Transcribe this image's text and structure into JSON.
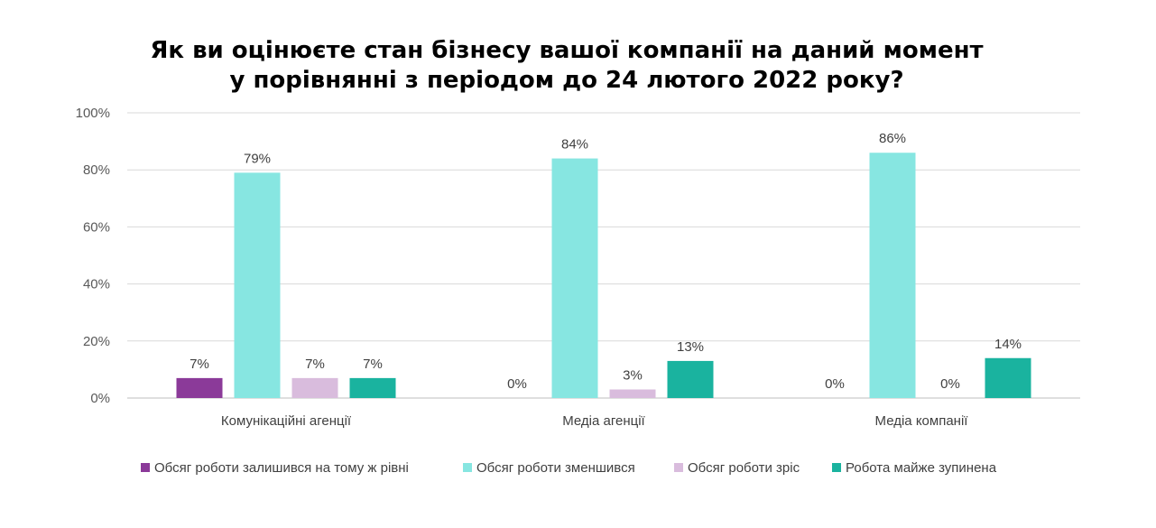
{
  "chart_data": {
    "type": "bar",
    "title_lines": [
      "Як ви оцінюєте стан бізнесу вашої компанії на даний момент",
      "у порівнянні з періодом до 24 лютого 2022 року?"
    ],
    "categories": [
      "Комунікаційні агенції",
      "Медіа агенції",
      "Медіа компанії"
    ],
    "series": [
      {
        "name": "Обсяг роботи залишився на тому ж рівні",
        "color": "#8b3a99",
        "values": [
          7,
          0,
          0
        ],
        "labels": [
          "7%",
          "0%",
          "0%"
        ]
      },
      {
        "name": "Обсяг роботи зменшився",
        "color": "#87e6e1",
        "values": [
          79,
          84,
          86
        ],
        "labels": [
          "79%",
          "84%",
          "86%"
        ]
      },
      {
        "name": "Обсяг роботи зріс",
        "color": "#d9bcdd",
        "values": [
          7,
          3,
          0
        ],
        "labels": [
          "7%",
          "3%",
          "0%"
        ]
      },
      {
        "name": "Робота майже зупинена",
        "color": "#1ab39f",
        "values": [
          7,
          13,
          14
        ],
        "labels": [
          "7%",
          "13%",
          "14%"
        ]
      }
    ],
    "yticks": [
      "0%",
      "20%",
      "40%",
      "60%",
      "80%",
      "100%"
    ],
    "ylim": [
      0,
      100
    ],
    "grid": true,
    "legend_position": "bottom"
  }
}
